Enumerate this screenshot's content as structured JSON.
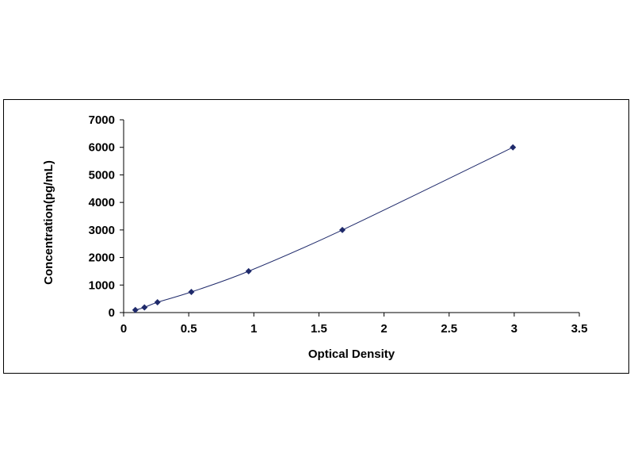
{
  "chart_data": {
    "type": "scatter",
    "title": "",
    "xlabel": "Optical Density",
    "ylabel": "Concentration(pg/mL)",
    "xlim": [
      0,
      3.5
    ],
    "ylim": [
      0,
      7000
    ],
    "x_ticks": [
      0,
      0.5,
      1,
      1.5,
      2,
      2.5,
      3,
      3.5
    ],
    "x_tick_labels": [
      "0",
      "0.5",
      "1",
      "1.5",
      "2",
      "2.5",
      "3",
      "3.5"
    ],
    "y_ticks": [
      0,
      1000,
      2000,
      3000,
      4000,
      5000,
      6000,
      7000
    ],
    "y_tick_labels": [
      "0",
      "1000",
      "2000",
      "3000",
      "4000",
      "5000",
      "6000",
      "7000"
    ],
    "grid": false,
    "legend": "none",
    "series": [
      {
        "marker": "diamond",
        "line": "smooth",
        "color": "#1f2a6b",
        "x": [
          0.09,
          0.16,
          0.26,
          0.52,
          0.96,
          1.68,
          2.99
        ],
        "y": [
          94,
          188,
          375,
          750,
          1500,
          3000,
          6000
        ]
      }
    ]
  }
}
